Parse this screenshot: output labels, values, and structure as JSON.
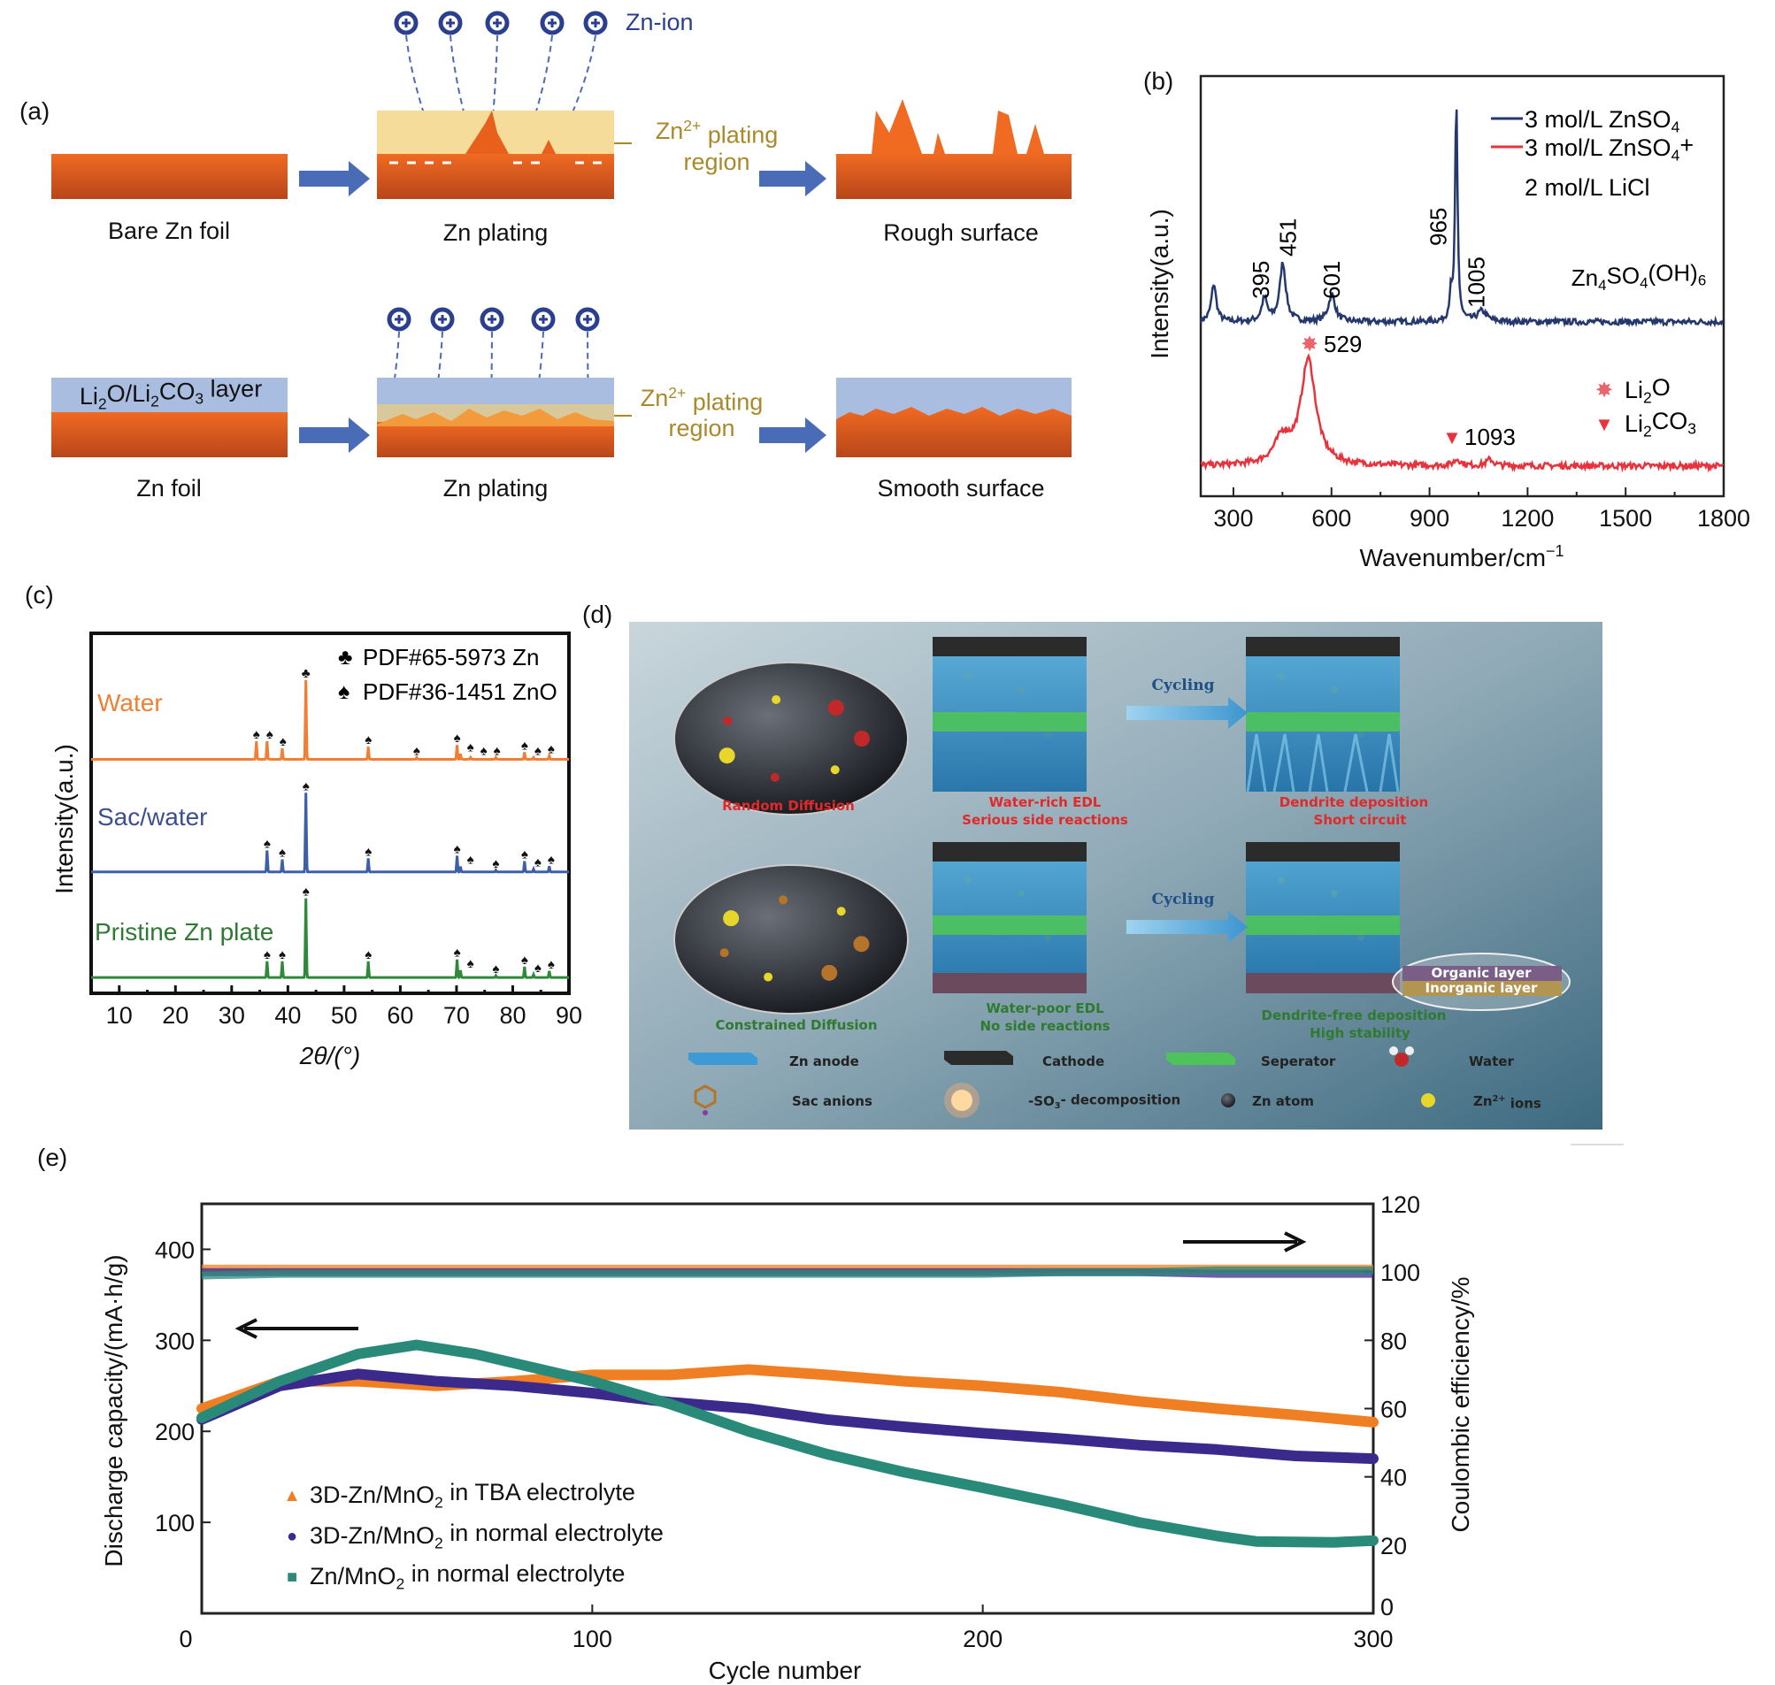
{
  "panel_a": {
    "label": "(a)",
    "zn_ion": "Zn-ion",
    "row1": {
      "left": "Bare Zn foil",
      "middle": "Zn plating",
      "right": "Rough surface"
    },
    "row2": {
      "left": "Zn foil",
      "middle": "Zn plating",
      "right": "Smooth surface"
    },
    "layer_label": [
      "Li",
      "2",
      "O/Li",
      "2",
      "CO",
      "3",
      " layer"
    ],
    "plating_region_1": [
      "Zn",
      "2+",
      " plating"
    ],
    "plating_region_2": "region",
    "colors": {
      "zn": "#e8601c",
      "plating": "#f6dc9a",
      "layer": "#a9bde0",
      "arrow": "#4a6bb5",
      "ion": "#2b3f8f",
      "gold": "#a88a2c"
    }
  },
  "chart_data": [
    {
      "id": "b",
      "type": "line",
      "panel_label": "(b)",
      "xlabel": "Wavenumber/cm",
      "xlabel_sup": "−1",
      "ylabel": "Intensity(a.u.)",
      "xlim": [
        200,
        1800
      ],
      "ylim": [
        0,
        100
      ],
      "xticks": [
        300,
        600,
        900,
        1200,
        1500,
        1800
      ],
      "series": [
        {
          "name": [
            "3 mol/L ZnSO",
            "4"
          ],
          "color": "#24386e",
          "baseline": 41.5,
          "peaks": [
            [
              240,
              9,
              18
            ],
            [
              395,
              5.5,
              20
            ],
            [
              451,
              14,
              22
            ],
            [
              601,
              6.5,
              25
            ],
            [
              965,
              6,
              10
            ],
            [
              982,
              52,
              9
            ],
            [
              1060,
              2.5,
              35
            ]
          ]
        },
        {
          "name": [
            "3 mol/L ZnSO",
            "4",
            "+"
          ],
          "name2": "2 mol/L LiCl",
          "color": "#e8323c",
          "baseline": 7.2,
          "peaks": [
            [
              529,
              25,
              55
            ],
            [
              450,
              6,
              60
            ],
            [
              985,
              1.5,
              25
            ],
            [
              1085,
              1.5,
              25
            ]
          ]
        }
      ],
      "peak_labels": [
        "395",
        "451",
        "601",
        "965",
        "1005"
      ],
      "peak_label_positions": [
        395,
        451,
        601,
        965,
        1005
      ],
      "compound": [
        "Zn",
        "4",
        "SO",
        "4",
        "(OH)",
        "6"
      ],
      "markers": [
        {
          "symbol": "✸",
          "label": "529",
          "x": 529,
          "species": [
            "Li",
            "2",
            "O"
          ]
        },
        {
          "symbol": "▼",
          "label": "1093",
          "x": 1093,
          "species": [
            "Li",
            "2",
            "CO",
            "3"
          ]
        }
      ]
    },
    {
      "id": "c",
      "type": "line",
      "panel_label": "(c)",
      "xlabel": "2θ/(°)",
      "ylabel": "Intensity(a.u.)",
      "xlim": [
        5,
        90
      ],
      "ylim": [
        0,
        100
      ],
      "xticks": [
        10,
        20,
        30,
        40,
        50,
        60,
        70,
        80,
        90
      ],
      "legend": [
        {
          "symbol": "♣",
          "label": "PDF#65-5973 Zn"
        },
        {
          "symbol": "♠",
          "label": "PDF#36-1451 ZnO"
        }
      ],
      "series": [
        {
          "name": "Water",
          "color": "#f07f34",
          "baseline": 65,
          "peaks": [
            [
              34.4,
              5,
              "♠"
            ],
            [
              36.3,
              5,
              "♠"
            ],
            [
              39.0,
              3,
              "♠"
            ],
            [
              43.2,
              22,
              "♣"
            ],
            [
              54.3,
              3.5,
              "♠"
            ],
            [
              62.9,
              0.5,
              "♠"
            ],
            [
              70.1,
              4,
              "♠"
            ],
            [
              70.7,
              1.5,
              "♠"
            ],
            [
              72.5,
              0.5,
              "♠"
            ],
            [
              77.0,
              0.5,
              "♠"
            ],
            [
              82.1,
              2,
              "♠"
            ],
            [
              83.7,
              0.5,
              "♠"
            ],
            [
              86.5,
              1,
              "♠"
            ]
          ]
        },
        {
          "name": "Sac/water",
          "color": "#3c5fa8",
          "baseline": 33.7,
          "peaks": [
            [
              36.3,
              6,
              "♠"
            ],
            [
              39.0,
              3.5,
              "♠"
            ],
            [
              43.2,
              22,
              "♠"
            ],
            [
              54.3,
              3.8,
              "♠"
            ],
            [
              70.1,
              4.5,
              "♠"
            ],
            [
              70.7,
              1.5,
              "♠"
            ],
            [
              77.0,
              0.5,
              "♠"
            ],
            [
              82.1,
              3,
              "♠"
            ],
            [
              83.7,
              0.8,
              "♠"
            ],
            [
              86.5,
              1.6,
              "♠"
            ]
          ]
        },
        {
          "name": "Pristine Zn plate",
          "color": "#2e8a3a",
          "baseline": 4.4,
          "peaks": [
            [
              36.3,
              4.5,
              "♠"
            ],
            [
              39.0,
              4.5,
              "♠"
            ],
            [
              43.2,
              22,
              "♠"
            ],
            [
              54.3,
              4.5,
              "♠"
            ],
            [
              70.1,
              5,
              "♠"
            ],
            [
              70.7,
              2,
              "♠"
            ],
            [
              77.0,
              0.5,
              "♠"
            ],
            [
              82.1,
              3,
              "♠"
            ],
            [
              83.7,
              0.8,
              "♠"
            ],
            [
              86.5,
              1.8,
              "♠"
            ]
          ]
        }
      ]
    },
    {
      "id": "e",
      "type": "line",
      "panel_label": "(e)",
      "xlabel": "Cycle number",
      "ylabel": "Discharge capacity/(mA·h/g)",
      "ylabel_right": "Coulombic efficiency/%",
      "xlim": [
        0,
        300
      ],
      "ylim": [
        0,
        450
      ],
      "ylim_right": [
        0,
        120
      ],
      "xticks": [
        0,
        100,
        200,
        300
      ],
      "yticks": [
        100,
        200,
        300,
        400
      ],
      "yticks_right": [
        0,
        20,
        40,
        60,
        80,
        100,
        120
      ],
      "series": [
        {
          "name": [
            "3D-Zn/MnO",
            "2",
            " in TBA electrolyte"
          ],
          "marker": "▲",
          "color": "#f07f24",
          "x": [
            0,
            20,
            40,
            60,
            80,
            100,
            120,
            140,
            160,
            180,
            200,
            220,
            240,
            260,
            280,
            300
          ],
          "capacity": [
            225,
            255,
            255,
            250,
            255,
            262,
            262,
            268,
            262,
            255,
            250,
            243,
            233,
            225,
            218,
            210
          ],
          "ce": [
            101,
            101,
            101,
            101,
            101,
            101,
            101,
            101,
            101,
            101,
            101,
            101,
            101,
            101,
            101,
            101
          ]
        },
        {
          "name": [
            "3D-Zn/MnO",
            "2",
            " in normal electrolyte"
          ],
          "marker": "●",
          "color": "#3b2a8c",
          "x": [
            0,
            20,
            40,
            60,
            80,
            100,
            120,
            140,
            160,
            180,
            200,
            220,
            240,
            260,
            280,
            300
          ],
          "capacity": [
            213,
            250,
            263,
            255,
            250,
            242,
            232,
            225,
            213,
            205,
            198,
            192,
            185,
            180,
            173,
            170
          ],
          "ce": [
            100,
            100,
            100,
            100,
            100,
            100,
            100,
            100,
            100,
            100,
            100,
            100,
            100,
            99.5,
            99.5,
            99.5
          ]
        },
        {
          "name": [
            "Zn/MnO",
            "2",
            " in normal electrolyte"
          ],
          "marker": "■",
          "color": "#2a8a7a",
          "x": [
            0,
            20,
            40,
            55,
            70,
            100,
            120,
            140,
            160,
            180,
            200,
            220,
            240,
            260,
            270,
            290,
            300
          ],
          "capacity": [
            215,
            255,
            285,
            295,
            285,
            255,
            230,
            200,
            175,
            155,
            138,
            120,
            100,
            85,
            79,
            78,
            80
          ],
          "ce": [
            99,
            99.5,
            99.5,
            99.5,
            99.5,
            99.5,
            99.5,
            99.5,
            99.5,
            99.5,
            99.5,
            100,
            100,
            100.5,
            100.5,
            100.5,
            100.5
          ]
        }
      ]
    }
  ],
  "panel_d": {
    "label": "(d)",
    "row1": {
      "circle": "Random Diffusion",
      "box1_a": "Water-rich EDL",
      "box1_b": "Serious side reactions",
      "cycling": "Cycling",
      "box2_a": "Dendrite deposition",
      "box2_b": "Short circuit"
    },
    "row2": {
      "circle": "Constrained Diffusion",
      "box1_a": "Water-poor EDL",
      "box1_b": "No side reactions",
      "cycling": "Cycling",
      "box2_a": "Dendrite-free deposition",
      "box2_b": "High stability",
      "organic": "Organic layer",
      "inorganic": "Inorganic layer"
    },
    "legend": {
      "zn_anode": "Zn anode",
      "cathode": "Cathode",
      "separator": "Seperator",
      "water": "Water",
      "sac": "Sac anions",
      "decomp": [
        "-SO",
        "3",
        "- decomposition"
      ],
      "zn_atom": "Zn atom",
      "zn_ion": [
        "Zn",
        "2+",
        " ions"
      ]
    }
  }
}
